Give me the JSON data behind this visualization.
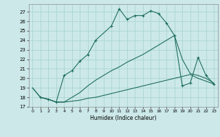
{
  "title": "",
  "xlabel": "Humidex (Indice chaleur)",
  "background_color": "#cce8e8",
  "grid_color": "#aad4d4",
  "line_color": "#1a6b5a",
  "xlim": [
    -0.5,
    23.5
  ],
  "ylim": [
    17,
    27.8
  ],
  "yticks": [
    17,
    18,
    19,
    20,
    21,
    22,
    23,
    24,
    25,
    26,
    27
  ],
  "xticks": [
    0,
    1,
    2,
    3,
    4,
    5,
    6,
    7,
    8,
    9,
    10,
    11,
    12,
    13,
    14,
    15,
    16,
    17,
    18,
    19,
    20,
    21,
    22,
    23
  ],
  "lines": [
    {
      "x": [
        0,
        1,
        2,
        3,
        4,
        5,
        6,
        7,
        8,
        9,
        10,
        11,
        12,
        13,
        14,
        15,
        16,
        17,
        18,
        19,
        20,
        21,
        22,
        23
      ],
      "y": [
        19.0,
        18.0,
        17.8,
        17.5,
        17.5,
        17.6,
        17.7,
        17.9,
        18.0,
        18.2,
        18.4,
        18.6,
        18.8,
        19.0,
        19.2,
        19.4,
        19.6,
        19.8,
        20.0,
        20.2,
        20.4,
        20.0,
        19.7,
        19.4
      ],
      "marker": false
    },
    {
      "x": [
        0,
        1,
        2,
        3,
        4,
        5,
        6,
        7,
        8,
        9,
        10,
        11,
        12,
        13,
        14,
        15,
        16,
        17,
        18,
        19,
        20,
        21,
        22,
        23
      ],
      "y": [
        19.0,
        18.0,
        17.8,
        17.5,
        17.5,
        18.0,
        18.5,
        19.2,
        19.8,
        20.3,
        20.8,
        21.2,
        21.7,
        22.1,
        22.5,
        23.0,
        23.5,
        24.0,
        24.5,
        22.0,
        20.5,
        20.3,
        20.0,
        19.5
      ],
      "marker": false
    },
    {
      "x": [
        1,
        2,
        3,
        4,
        5,
        6,
        7,
        8,
        10,
        11,
        12,
        13,
        14,
        15,
        16,
        17,
        18,
        19,
        20,
        21,
        22,
        23
      ],
      "y": [
        18.0,
        17.8,
        17.5,
        20.3,
        20.8,
        21.8,
        22.5,
        24.0,
        25.5,
        27.3,
        26.2,
        26.6,
        26.6,
        27.1,
        26.8,
        25.8,
        24.5,
        19.2,
        19.5,
        22.2,
        20.3,
        19.4
      ],
      "marker": true
    }
  ]
}
